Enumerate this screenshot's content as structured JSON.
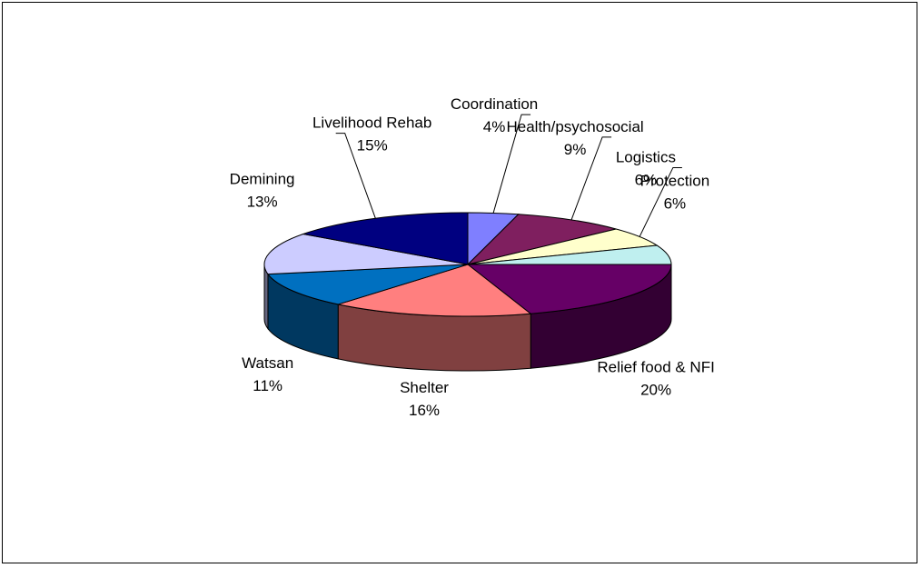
{
  "chart_data": {
    "type": "pie",
    "title": "",
    "slices": [
      {
        "label": "Coordination",
        "value": 4,
        "display": "4%",
        "color": "#7F7FFF"
      },
      {
        "label": "Health/psychosocial",
        "value": 9,
        "display": "9%",
        "color": "#7F1F5F"
      },
      {
        "label": "Logistics",
        "value": 6,
        "display": "6%",
        "color": "#FFFFCC"
      },
      {
        "label": "Protection",
        "value": 6,
        "display": "6%",
        "color": "#BFEFEF"
      },
      {
        "label": "Relief food & NFI",
        "value": 20,
        "display": "20%",
        "color": "#660066"
      },
      {
        "label": "Shelter",
        "value": 16,
        "display": "16%",
        "color": "#FF7F7F"
      },
      {
        "label": "Watsan",
        "value": 11,
        "display": "11%",
        "color": "#0070C0"
      },
      {
        "label": "Demining",
        "value": 13,
        "display": "13%",
        "color": "#CCCCFF"
      },
      {
        "label": "Livelihood Rehab",
        "value": 15,
        "display": "15%",
        "color": "#000080"
      }
    ],
    "style": "3d-pie",
    "legend": "none"
  }
}
